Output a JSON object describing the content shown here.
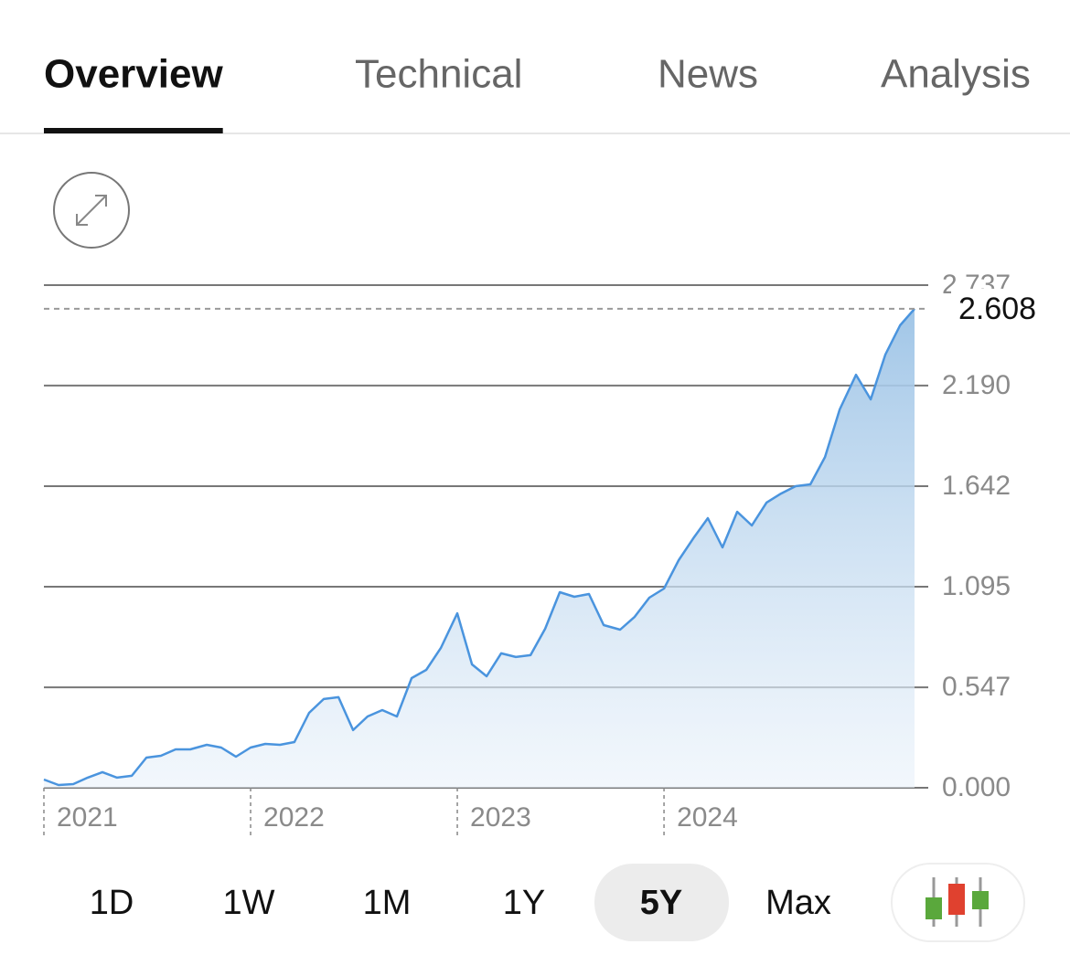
{
  "tabs": [
    "Overview",
    "Technical",
    "News",
    "Analysis"
  ],
  "active_tab": 0,
  "chart_data": {
    "type": "line",
    "x": [
      2021.0,
      2021.071,
      2021.142,
      2021.212,
      2021.283,
      2021.354,
      2021.425,
      2021.496,
      2021.566,
      2021.637,
      2021.708,
      2021.788,
      2021.858,
      2021.929,
      2022.0,
      2022.071,
      2022.142,
      2022.212,
      2022.283,
      2022.354,
      2022.425,
      2022.496,
      2022.566,
      2022.637,
      2022.708,
      2022.779,
      2022.85,
      2022.92,
      2023.0,
      2023.071,
      2023.142,
      2023.212,
      2023.283,
      2023.354,
      2023.425,
      2023.496,
      2023.566,
      2023.637,
      2023.708,
      2023.788,
      2023.858,
      2023.929,
      2024.0,
      2024.071,
      2024.142,
      2024.212,
      2024.283,
      2024.354,
      2024.425,
      2024.496,
      2024.566,
      2024.637,
      2024.708,
      2024.779,
      2024.85,
      2024.929,
      2025.0,
      2025.071,
      2025.142,
      2025.212
    ],
    "series": [
      {
        "color": "#4a94de",
        "values": [
          0.045,
          0.015,
          0.02,
          0.055,
          0.085,
          0.055,
          0.065,
          0.164,
          0.174,
          0.209,
          0.209,
          0.234,
          0.219,
          0.169,
          0.219,
          0.239,
          0.234,
          0.249,
          0.408,
          0.483,
          0.493,
          0.314,
          0.388,
          0.423,
          0.388,
          0.597,
          0.642,
          0.761,
          0.95,
          0.672,
          0.607,
          0.732,
          0.712,
          0.722,
          0.866,
          1.065,
          1.04,
          1.055,
          0.886,
          0.861,
          0.931,
          1.035,
          1.085,
          1.239,
          1.359,
          1.468,
          1.309,
          1.503,
          1.428,
          1.553,
          1.602,
          1.642,
          1.652,
          1.801,
          2.06,
          2.249,
          2.115,
          2.359,
          2.518,
          2.608
        ]
      }
    ],
    "xlim": [
      2021,
      2025.212
    ],
    "xticks": [
      2021,
      2022,
      2023,
      2024
    ],
    "ylim": [
      0,
      2.737
    ],
    "yticks": [
      {
        "value": 0,
        "label": "0.000"
      },
      {
        "value": 0.547,
        "label": "0.547"
      },
      {
        "value": 1.095,
        "label": "1.095"
      },
      {
        "value": 1.642,
        "label": "1.642"
      },
      {
        "value": 2.19,
        "label": "2.190"
      },
      {
        "value": 2.737,
        "label": "2.737"
      }
    ],
    "grid": true
  },
  "ranges": [
    "1D",
    "1W",
    "1M",
    "1Y",
    "5Y",
    "Max"
  ],
  "active_range": 4
}
